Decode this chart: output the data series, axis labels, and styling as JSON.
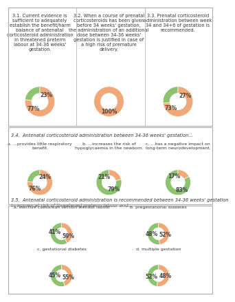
{
  "background": "#ffffff",
  "green": "#8dc26f",
  "orange": "#f0a878",
  "section_3_1": {
    "title": "3.1. Current evidence is\nsufficient to adequately\nestablish the benefit/harm\nbalance of antenatal\ncorticosteroid administration\nin threatened preterm\nlabour at 34-36 weeks'\ngestation.",
    "green_pct": 23,
    "orange_pct": 77,
    "green_label": "23%",
    "orange_label": "77%"
  },
  "section_3_2": {
    "title": "3.2. When a course of prenatal\ncorticosteroids has been given\nbefore 34 weeks' gestation,\nthe administration of an additional\ndose between 34-36 weeks'\ngestation is justified in case of\na high risk of premature\ndelivery.",
    "green_pct": 0,
    "orange_pct": 100,
    "green_label": "",
    "orange_label": "100%"
  },
  "section_3_3": {
    "title": "3.3. Prenatal corticosteroid\nadministration between week\n34 and 34+6 of gestation is\nrecommended.",
    "green_pct": 27,
    "orange_pct": 73,
    "green_label": "27%",
    "orange_label": "73%"
  },
  "section_3_4_title": "3.4.  Antenatal corticosteroid administration between 34-36 weeks' gestation...",
  "section_3_4a": {
    "title": "a. ...provides little respiratory\nbenefit.",
    "green_pct": 24,
    "orange_pct": 76,
    "green_label": "24%",
    "orange_label": "76%"
  },
  "section_3_4b": {
    "title": "b. ...increases the risk of\nhypoglycaemia in the newborn.",
    "green_pct": 79,
    "orange_pct": 21,
    "green_label": "79%",
    "orange_label": "21%"
  },
  "section_3_4c": {
    "title": "c. ...has a negative impact on\nlong-term neurodevelopment.",
    "green_pct": 83,
    "orange_pct": 17,
    "green_label": "83%",
    "orange_label": "17%"
  },
  "section_3_5_title": "3.5.  Antenatal corticosteroid administration is recommended between 34-36 weeks' gestation\nin women at risk of threatened preterm labour and...",
  "section_3_5a": {
    "title": "a. elective caesarean section without labour",
    "green_pct": 59,
    "orange_pct": 41,
    "green_label": "59%",
    "orange_label": "41%"
  },
  "section_3_5b": {
    "title": "b. pregestational diabetes",
    "green_pct": 52,
    "orange_pct": 48,
    "green_label": "52%",
    "orange_label": "48%"
  },
  "section_3_5c": {
    "title": "c. gestational diabetes",
    "green_pct": 55,
    "orange_pct": 45,
    "green_label": "55%",
    "orange_label": "45%"
  },
  "section_3_5d": {
    "title": "d. multiple gestation",
    "green_pct": 48,
    "orange_pct": 52,
    "green_label": "48%",
    "orange_label": "52%"
  }
}
